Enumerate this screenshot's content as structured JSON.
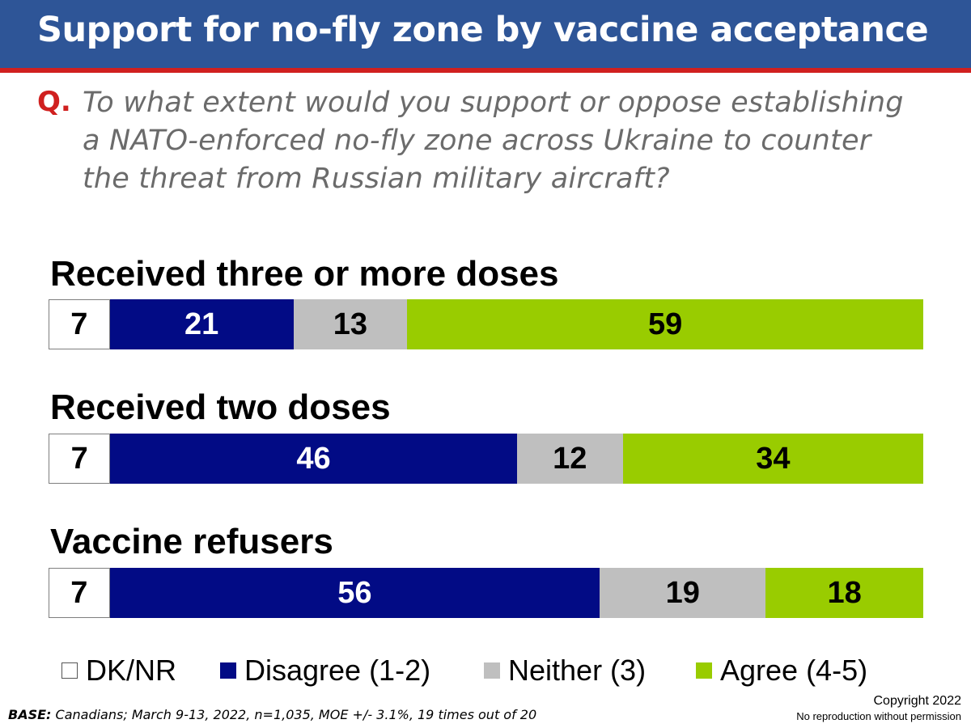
{
  "header": {
    "title": "Support for no-fly zone by vaccine acceptance",
    "bar_color": "#2e5597",
    "rule_color": "#d0201f"
  },
  "question": {
    "label": "Q.",
    "text": "To what extent would you support or oppose establishing a NATO-enforced no-fly zone across Ukraine to counter the threat from Russian military aircraft?"
  },
  "chart_data": {
    "type": "bar",
    "orientation": "horizontal-stacked",
    "categories": [
      "Received three or more doses",
      "Received two doses",
      "Vaccine refusers"
    ],
    "series": [
      {
        "name": "DK/NR",
        "color": "#ffffff",
        "text_color": "#000000",
        "values": [
          7,
          7,
          7
        ]
      },
      {
        "name": "Disagree (1-2)",
        "color": "#020b85",
        "text_color": "#ffffff",
        "values": [
          21,
          46,
          56
        ]
      },
      {
        "name": "Neither (3)",
        "color": "#bfbfbf",
        "text_color": "#000000",
        "values": [
          13,
          12,
          19
        ]
      },
      {
        "name": "Agree (4-5)",
        "color": "#99cc00",
        "text_color": "#000000",
        "values": [
          59,
          34,
          18
        ]
      }
    ],
    "legend_position": "bottom",
    "grid": false
  },
  "footer": {
    "base_label": "BASE:",
    "base_text": "Canadians; March 9-13, 2022, n=1,035, MOE +/- 3.1%, 19 times out of 20",
    "copyright": "Copyright 2022",
    "no_repro": "No reproduction without permission"
  }
}
